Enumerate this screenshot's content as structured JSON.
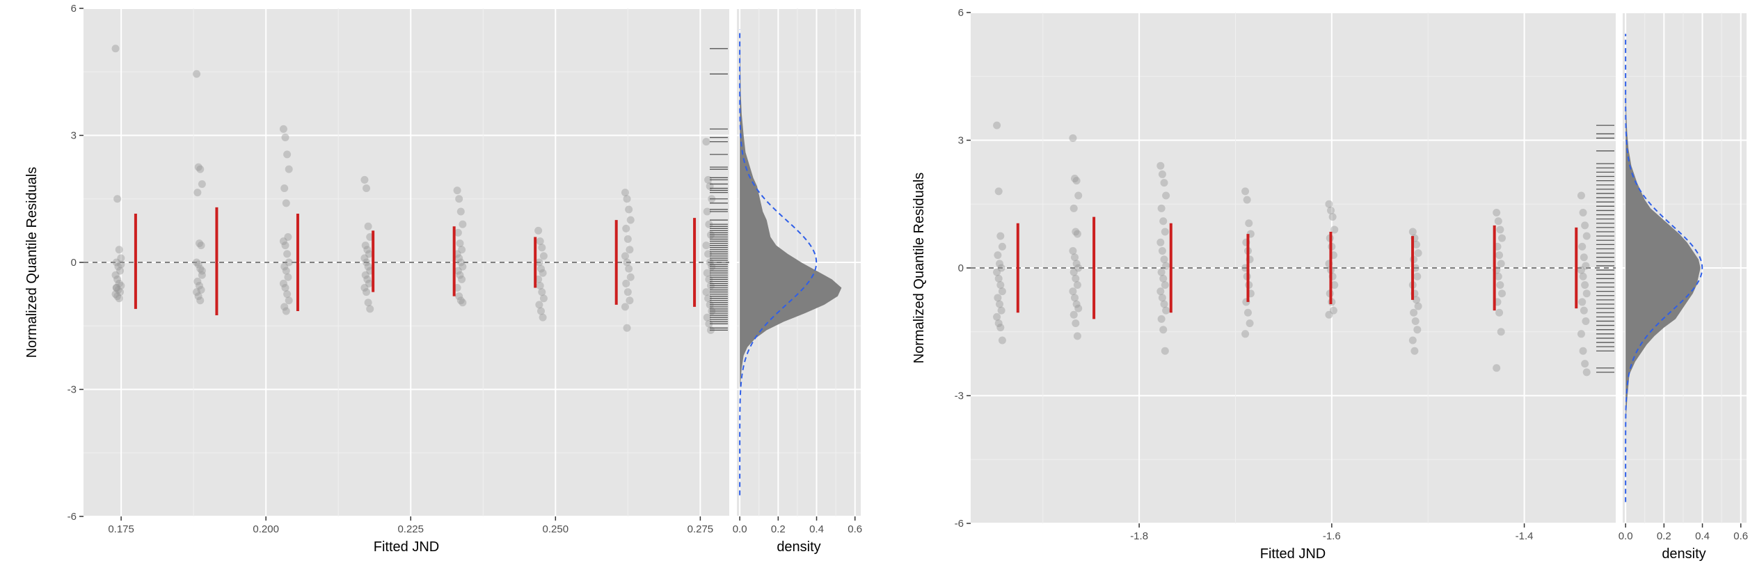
{
  "colors": {
    "panel_bg": "#e5e5e5",
    "grid_major": "#ffffff",
    "grid_minor": "#f0f0f0",
    "point": "#9a9a9a",
    "interval": "#cc1f1f",
    "rug": "#555555",
    "density_fill": "#7f7f7f",
    "normal_curve": "#2f5fe8",
    "zero_line": "#555555"
  },
  "chart_data": [
    {
      "type": "scatter",
      "ylabel": "Normalized Quantile Residuals",
      "xlabel": "Fitted JND",
      "density_xlabel": "density",
      "ylim": [
        -6,
        6
      ],
      "y_ticks": [
        "6",
        "3",
        "0",
        "-3",
        "-6"
      ],
      "xlim": [
        0.1685,
        0.28
      ],
      "x_ticks": [
        "0.175",
        "0.200",
        "0.225",
        "0.250",
        "0.275"
      ],
      "density_xlim": [
        -0.015,
        0.63
      ],
      "density_ticks": [
        "0.0",
        "0.2",
        "0.4",
        "0.6"
      ],
      "grid": true,
      "reference_line_y": 0,
      "groups": [
        {
          "x": 0.1745,
          "interval": [
            -1.1,
            1.15
          ],
          "interval_x": 0.1775,
          "residuals": [
            5.05,
            1.5,
            0.3,
            0.1,
            0.0,
            -0.1,
            -0.2,
            -0.3,
            -0.4,
            -0.5,
            -0.55,
            -0.6,
            -0.65,
            -0.7,
            -0.75,
            -0.8,
            -0.85,
            -0.05,
            -0.6
          ]
        },
        {
          "x": 0.1885,
          "interval": [
            -1.25,
            1.3
          ],
          "interval_x": 0.1915,
          "residuals": [
            4.45,
            2.25,
            2.2,
            1.85,
            1.65,
            0.45,
            0.4,
            0.0,
            -0.05,
            -0.15,
            -0.3,
            -0.45,
            -0.55,
            -0.65,
            -0.7,
            -0.8,
            -0.9,
            -0.2
          ]
        },
        {
          "x": 0.2035,
          "interval": [
            -1.15,
            1.15
          ],
          "interval_x": 0.2055,
          "residuals": [
            3.15,
            2.95,
            2.55,
            2.2,
            1.75,
            1.4,
            0.6,
            0.5,
            0.4,
            0.2,
            0.0,
            -0.1,
            -0.2,
            -0.35,
            -0.5,
            -0.6,
            -0.75,
            -0.9,
            -1.05,
            -1.15
          ]
        },
        {
          "x": 0.2175,
          "interval": [
            -0.7,
            0.75
          ],
          "interval_x": 0.2185,
          "residuals": [
            1.95,
            1.75,
            0.85,
            0.6,
            0.4,
            0.3,
            0.2,
            0.1,
            0.0,
            -0.1,
            -0.2,
            -0.3,
            -0.4,
            -0.5,
            -0.6,
            -0.7,
            -0.95,
            -1.1
          ]
        },
        {
          "x": 0.2335,
          "interval": [
            -0.8,
            0.85
          ],
          "interval_x": 0.2325,
          "residuals": [
            1.7,
            1.5,
            1.2,
            0.9,
            0.7,
            0.45,
            0.3,
            0.2,
            0.1,
            0.0,
            -0.1,
            -0.2,
            -0.3,
            -0.4,
            -0.6,
            -0.8,
            -0.9,
            -0.95
          ]
        },
        {
          "x": 0.2475,
          "interval": [
            -0.6,
            0.6
          ],
          "interval_x": 0.2465,
          "residuals": [
            0.75,
            0.5,
            0.35,
            0.15,
            0.0,
            -0.15,
            -0.25,
            -0.4,
            -0.55,
            -0.7,
            -0.85,
            -1.0,
            -1.15,
            -1.3
          ]
        },
        {
          "x": 0.2625,
          "interval": [
            -1.0,
            1.0
          ],
          "interval_x": 0.2605,
          "residuals": [
            1.65,
            1.5,
            1.25,
            1.0,
            0.8,
            0.55,
            0.3,
            0.15,
            0.0,
            -0.15,
            -0.35,
            -0.5,
            -0.7,
            -0.9,
            -1.05,
            -1.55
          ]
        },
        {
          "x": 0.2765,
          "interval": [
            -1.05,
            1.05
          ],
          "interval_x": 0.274,
          "residuals": [
            2.85,
            1.95,
            1.8,
            1.5,
            1.2,
            0.9,
            0.65,
            0.4,
            0.2,
            0.0,
            -0.1,
            -0.25,
            -0.4,
            -0.55,
            -0.7,
            -0.85,
            -1.0,
            -1.15,
            -1.3,
            -1.45,
            -1.6
          ]
        }
      ],
      "rug": [
        5.05,
        4.45,
        3.15,
        2.95,
        2.85,
        2.55,
        2.25,
        2.2,
        2.0,
        1.95,
        1.85,
        1.75,
        1.7,
        1.65,
        1.5,
        1.4,
        1.25,
        1.2,
        1.0,
        0.9,
        0.85,
        0.8,
        0.75,
        0.7,
        0.65,
        0.6,
        0.55,
        0.5,
        0.45,
        0.4,
        0.35,
        0.3,
        0.25,
        0.2,
        0.15,
        0.1,
        0.05,
        0.0,
        -0.05,
        -0.1,
        -0.15,
        -0.2,
        -0.25,
        -0.3,
        -0.35,
        -0.4,
        -0.45,
        -0.5,
        -0.55,
        -0.6,
        -0.65,
        -0.7,
        -0.75,
        -0.8,
        -0.85,
        -0.9,
        -0.95,
        -1.0,
        -1.05,
        -1.1,
        -1.15,
        -1.2,
        -1.25,
        -1.3,
        -1.35,
        -1.4,
        -1.45,
        -1.55,
        -1.6
      ],
      "density": {
        "y": [
          -5.5,
          -4.5,
          -4.0,
          -3.5,
          -3.0,
          -2.5,
          -2.2,
          -2.0,
          -1.8,
          -1.6,
          -1.4,
          -1.2,
          -1.0,
          -0.8,
          -0.6,
          -0.4,
          -0.2,
          0.0,
          0.2,
          0.4,
          0.6,
          0.8,
          1.0,
          1.2,
          1.4,
          1.6,
          1.8,
          2.0,
          2.3,
          2.6,
          3.0,
          3.5,
          4.0,
          5.0,
          5.5
        ],
        "values": [
          0.0,
          0.0,
          0.0,
          0.0,
          0.0,
          0.01,
          0.02,
          0.04,
          0.08,
          0.14,
          0.23,
          0.34,
          0.44,
          0.51,
          0.53,
          0.48,
          0.4,
          0.32,
          0.25,
          0.19,
          0.16,
          0.15,
          0.14,
          0.12,
          0.11,
          0.1,
          0.09,
          0.07,
          0.05,
          0.03,
          0.02,
          0.01,
          0.005,
          0.002,
          0.0
        ]
      },
      "normal_curve": {
        "mean": 0,
        "sd": 1,
        "y_range": [
          -5.5,
          5.5
        ]
      }
    },
    {
      "type": "scatter",
      "ylabel": "Normalized Quantile Residuals",
      "xlabel": "Fitted JND",
      "density_xlabel": "density",
      "ylim": [
        -6,
        6
      ],
      "y_ticks": [
        "6",
        "3",
        "0",
        "-3",
        "-6"
      ],
      "xlim": [
        -1.975,
        -1.305
      ],
      "x_ticks": [
        "-1.8",
        "-1.6",
        "-1.4"
      ],
      "density_xlim": [
        -0.015,
        0.63
      ],
      "density_ticks": [
        "0.0",
        "0.2",
        "0.4",
        "0.6"
      ],
      "grid": true,
      "reference_line_y": 0,
      "groups": [
        {
          "x": -1.945,
          "interval": [
            -1.05,
            1.05
          ],
          "interval_x": -1.926,
          "residuals": [
            3.35,
            1.8,
            0.75,
            0.5,
            0.3,
            0.1,
            0.0,
            -0.1,
            -0.25,
            -0.4,
            -0.55,
            -0.7,
            -0.85,
            -1.0,
            -1.15,
            -1.3,
            -1.4,
            -1.7
          ]
        },
        {
          "x": -1.866,
          "interval": [
            -1.2,
            1.2
          ],
          "interval_x": -1.847,
          "residuals": [
            3.05,
            2.1,
            2.05,
            1.7,
            1.4,
            0.85,
            0.8,
            0.4,
            0.25,
            0.1,
            0.0,
            -0.1,
            -0.25,
            -0.4,
            -0.55,
            -0.7,
            -0.85,
            -0.95,
            -1.1,
            -1.3,
            -1.6
          ]
        },
        {
          "x": -1.775,
          "interval": [
            -1.05,
            1.05
          ],
          "interval_x": -1.767,
          "residuals": [
            2.4,
            2.2,
            2.0,
            1.7,
            1.4,
            1.1,
            0.85,
            0.6,
            0.4,
            0.2,
            0.05,
            -0.1,
            -0.25,
            -0.4,
            -0.55,
            -0.7,
            -0.85,
            -1.0,
            -1.2,
            -1.45,
            -1.95
          ]
        },
        {
          "x": -1.687,
          "interval": [
            -0.8,
            0.8
          ],
          "interval_x": -1.687,
          "residuals": [
            1.8,
            1.6,
            1.05,
            0.8,
            0.6,
            0.4,
            0.2,
            0.0,
            -0.2,
            -0.4,
            -0.6,
            -0.8,
            -1.05,
            -1.3,
            -1.55
          ]
        },
        {
          "x": -1.6,
          "interval": [
            -0.85,
            0.85
          ],
          "interval_x": -1.601,
          "residuals": [
            1.5,
            1.35,
            1.2,
            0.9,
            0.7,
            0.5,
            0.3,
            0.1,
            -0.05,
            -0.2,
            -0.4,
            -0.6,
            -0.8,
            -1.0,
            -1.1
          ]
        },
        {
          "x": -1.513,
          "interval": [
            -0.75,
            0.75
          ],
          "interval_x": -1.516,
          "residuals": [
            0.85,
            0.7,
            0.55,
            0.35,
            0.2,
            0.0,
            -0.2,
            -0.4,
            -0.6,
            -0.75,
            -0.9,
            -1.05,
            -1.25,
            -1.45,
            -1.7,
            -1.95
          ]
        },
        {
          "x": -1.426,
          "interval": [
            -1.0,
            1.0
          ],
          "interval_x": -1.431,
          "residuals": [
            1.3,
            1.1,
            0.9,
            0.7,
            0.5,
            0.3,
            0.1,
            -0.05,
            -0.2,
            -0.4,
            -0.6,
            -0.8,
            -1.05,
            -1.5,
            -2.35
          ]
        },
        {
          "x": -1.338,
          "interval": [
            -0.95,
            0.95
          ],
          "interval_x": -1.346,
          "residuals": [
            1.7,
            1.3,
            1.0,
            0.75,
            0.5,
            0.25,
            0.05,
            -0.05,
            -0.2,
            -0.4,
            -0.6,
            -0.8,
            -1.0,
            -1.25,
            -1.55,
            -1.95,
            -2.25,
            -2.45
          ]
        }
      ],
      "rug": [
        3.35,
        3.15,
        3.05,
        2.75,
        2.45,
        2.35,
        2.25,
        2.15,
        2.05,
        1.95,
        1.85,
        1.75,
        1.65,
        1.55,
        1.45,
        1.35,
        1.25,
        1.15,
        1.05,
        0.95,
        0.85,
        0.75,
        0.65,
        0.55,
        0.45,
        0.35,
        0.25,
        0.15,
        0.05,
        -0.05,
        -0.15,
        -0.25,
        -0.35,
        -0.45,
        -0.55,
        -0.65,
        -0.75,
        -0.85,
        -0.95,
        -1.05,
        -1.15,
        -1.25,
        -1.35,
        -1.45,
        -1.55,
        -1.65,
        -1.75,
        -1.85,
        -1.95,
        -2.35,
        -2.45
      ],
      "density": {
        "y": [
          -5.5,
          -4.5,
          -3.5,
          -3.0,
          -2.5,
          -2.2,
          -2.0,
          -1.8,
          -1.6,
          -1.4,
          -1.2,
          -1.0,
          -0.8,
          -0.6,
          -0.4,
          -0.2,
          0.0,
          0.2,
          0.4,
          0.6,
          0.8,
          1.0,
          1.2,
          1.4,
          1.6,
          1.8,
          2.0,
          2.4,
          2.8,
          3.2,
          3.6,
          4.5,
          5.5
        ],
        "values": [
          0.0,
          0.0,
          0.002,
          0.01,
          0.02,
          0.05,
          0.08,
          0.11,
          0.15,
          0.2,
          0.26,
          0.29,
          0.32,
          0.35,
          0.37,
          0.38,
          0.39,
          0.38,
          0.35,
          0.32,
          0.28,
          0.23,
          0.18,
          0.13,
          0.1,
          0.08,
          0.06,
          0.03,
          0.015,
          0.008,
          0.004,
          0.0,
          0.0
        ]
      },
      "normal_curve": {
        "mean": 0,
        "sd": 1,
        "y_range": [
          -5.5,
          5.5
        ]
      }
    }
  ]
}
